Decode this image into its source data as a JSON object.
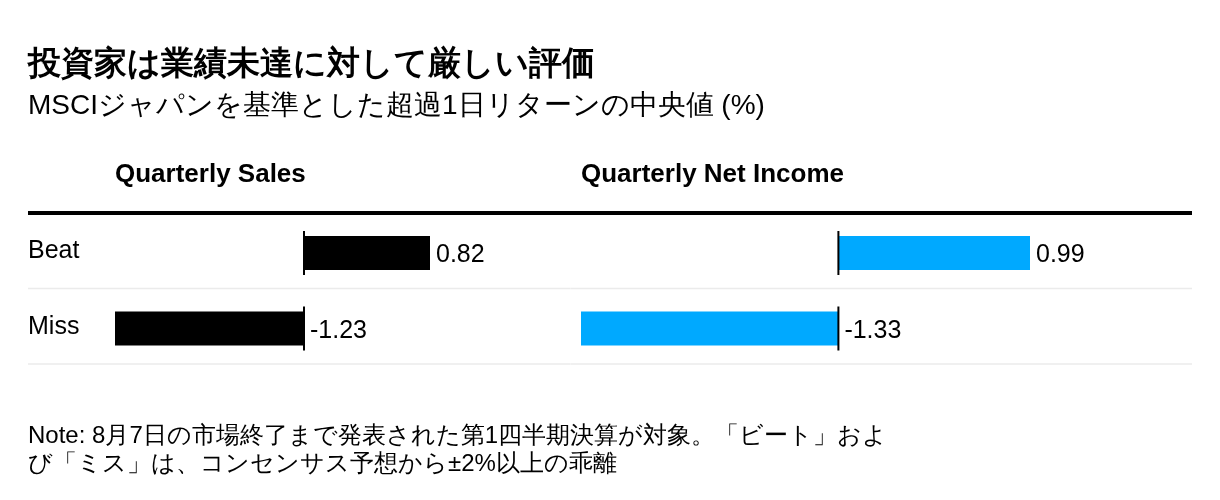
{
  "chart_data": [
    {
      "type": "other",
      "title": "投資家は業績未達に対して厳しい評価",
      "subtitle": "MSCIジャパンを基準とした超過1日リターンの中央値 (%)",
      "annotations": [
        "Note: 8月7日の市場終了まで発表された第1四半期決算が対象。「ビート」および「ミス」は、コンセンサス予想から±2%以上の乖離"
      ]
    },
    {
      "type": "bar",
      "title": "Quarterly Sales",
      "orientation": "horizontal",
      "categories": [
        "Beat",
        "Miss"
      ],
      "values": [
        0.82,
        -1.23
      ],
      "color": "#000000",
      "ref_lines": [
        {
          "axis": "x",
          "value": 0,
          "color": "#000000"
        }
      ],
      "data_labels": true,
      "grid": "y",
      "tick_labels": "y"
    },
    {
      "type": "bar",
      "title": "Quarterly Net Income",
      "orientation": "horizontal",
      "categories": [
        null,
        null
      ],
      "values": [
        0.99,
        -1.33
      ],
      "color": "#00a9ff",
      "ref_lines": [
        {
          "axis": "x",
          "value": 0,
          "color": "#000000"
        }
      ],
      "data_labels": true,
      "grid": "y",
      "tick_labels": false
    }
  ]
}
